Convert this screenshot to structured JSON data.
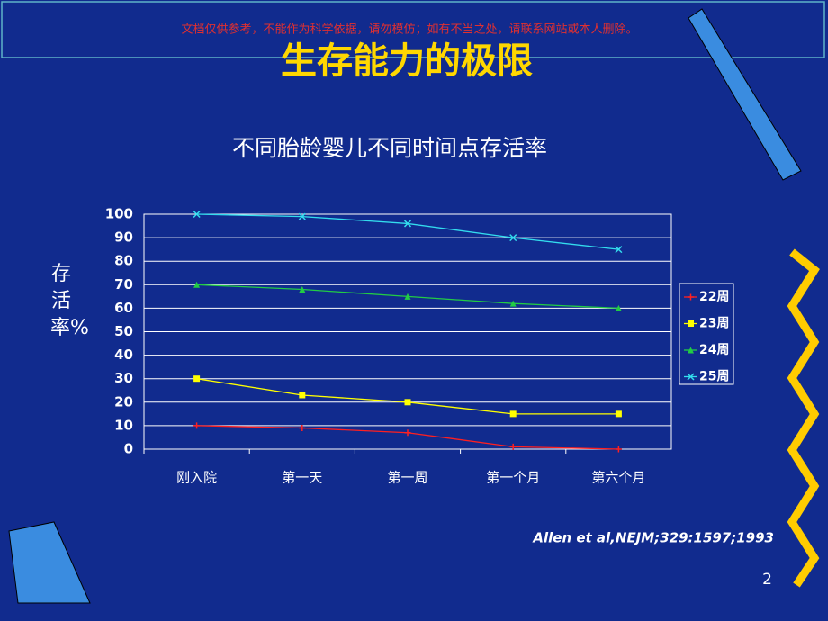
{
  "slide": {
    "watermark": "文档仅供参考，不能作为科学依据，请勿模仿；如有不当之处，请联系网站或本人删除。",
    "title": "生存能力的极限",
    "citation": "Allen et al,NEJM;329:1597;1993",
    "page_number": 2
  },
  "chart_data": {
    "type": "line",
    "title": "不同胎龄婴儿不同时间点存活率",
    "y_label": "存活率%",
    "categories": [
      "刚入院",
      "第一天",
      "第一周",
      "第一个月",
      "第六个月"
    ],
    "series": [
      {
        "name": "22周",
        "color": "#ff2020",
        "marker": "plus",
        "values": [
          10,
          9,
          7,
          1,
          0
        ]
      },
      {
        "name": "23周",
        "color": "#ffff00",
        "marker": "square",
        "values": [
          30,
          23,
          20,
          15,
          15
        ]
      },
      {
        "name": "24周",
        "color": "#22cc44",
        "marker": "triangle",
        "values": [
          70,
          68,
          65,
          62,
          60
        ]
      },
      {
        "name": "25周",
        "color": "#33ddee",
        "marker": "x",
        "values": [
          100,
          99,
          96,
          90,
          85
        ]
      }
    ],
    "ylim": [
      0,
      100
    ],
    "yticks": [
      0,
      10,
      20,
      30,
      40,
      50,
      60,
      70,
      80,
      90,
      100
    ],
    "grid": true,
    "legend": "right"
  }
}
